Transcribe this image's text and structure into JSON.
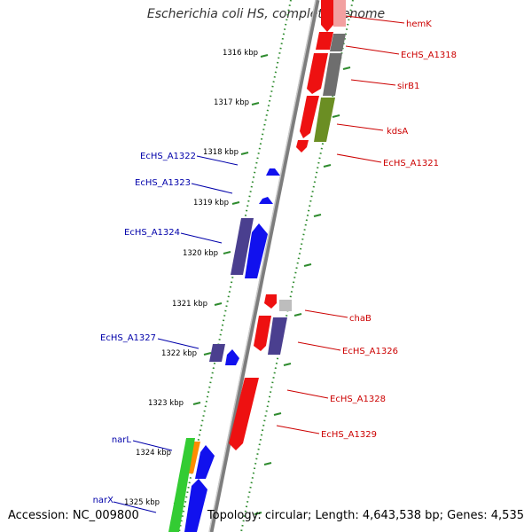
{
  "title": "Escherichia coli HS, complete genome",
  "accession": "Accession: NC_009800",
  "summary": "Topology: circular; Length: 4,643,538 bp; Genes: 4,535",
  "ticks": [
    "1316 kbp",
    "1317 kbp",
    "1318 kbp",
    "1319 kbp",
    "1320 kbp",
    "1321 kbp",
    "1322 kbp",
    "1323 kbp",
    "1324 kbp",
    "1325 kbp"
  ],
  "right_labels": [
    "hemK",
    "EcHS_A1318",
    "sirB1",
    "kdsA",
    "EcHS_A1321",
    "chaB",
    "EcHS_A1326",
    "EcHS_A1328",
    "EcHS_A1329"
  ],
  "left_labels": [
    "EcHS_A1322",
    "EcHS_A1323",
    "EcHS_A1324",
    "EcHS_A1327",
    "narL",
    "narX"
  ],
  "colors": {
    "backbone": "#8a8a8a",
    "tick": "#2e8b2e",
    "right_label": "#cc0000",
    "left_label": "#0000aa",
    "red_gene": "#ee1111",
    "blue_gene": "#1111ee",
    "purple_gene": "#4a3f8f",
    "gray_gene": "#707070",
    "olive_gene": "#6b8e23",
    "green_gene": "#33cc33",
    "orange_gene": "#ff8c00"
  }
}
